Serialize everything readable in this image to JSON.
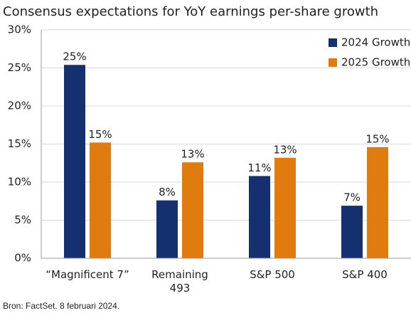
{
  "chart_data": {
    "type": "bar",
    "title": "Consensus expectations for YoY earnings per-share growth",
    "source": "Bron: FactSet. 8 februari 2024.",
    "categories": [
      "“Magnificent 7”",
      "Remaining 493",
      "S&P 500",
      "S&P 400"
    ],
    "series": [
      {
        "name": "2024 Growth",
        "color": "#14306e",
        "values": [
          25.4,
          7.6,
          10.8,
          6.9
        ],
        "value_labels": [
          "25%",
          "8%",
          "11%",
          "7%"
        ]
      },
      {
        "name": "2025 Growth",
        "color": "#e07b10",
        "values": [
          15.2,
          12.6,
          13.2,
          14.6
        ],
        "value_labels": [
          "15%",
          "13%",
          "13%",
          "15%"
        ]
      }
    ],
    "ylim": [
      0,
      30
    ],
    "yticks": [
      {
        "value": 0,
        "label": "0%"
      },
      {
        "value": 5,
        "label": "5%"
      },
      {
        "value": 10,
        "label": "10%"
      },
      {
        "value": 15,
        "label": "15%"
      },
      {
        "value": 20,
        "label": "20%"
      },
      {
        "value": 25,
        "label": "25%"
      },
      {
        "value": 30,
        "label": "30%"
      }
    ],
    "grid": true,
    "legend": "top-right"
  }
}
